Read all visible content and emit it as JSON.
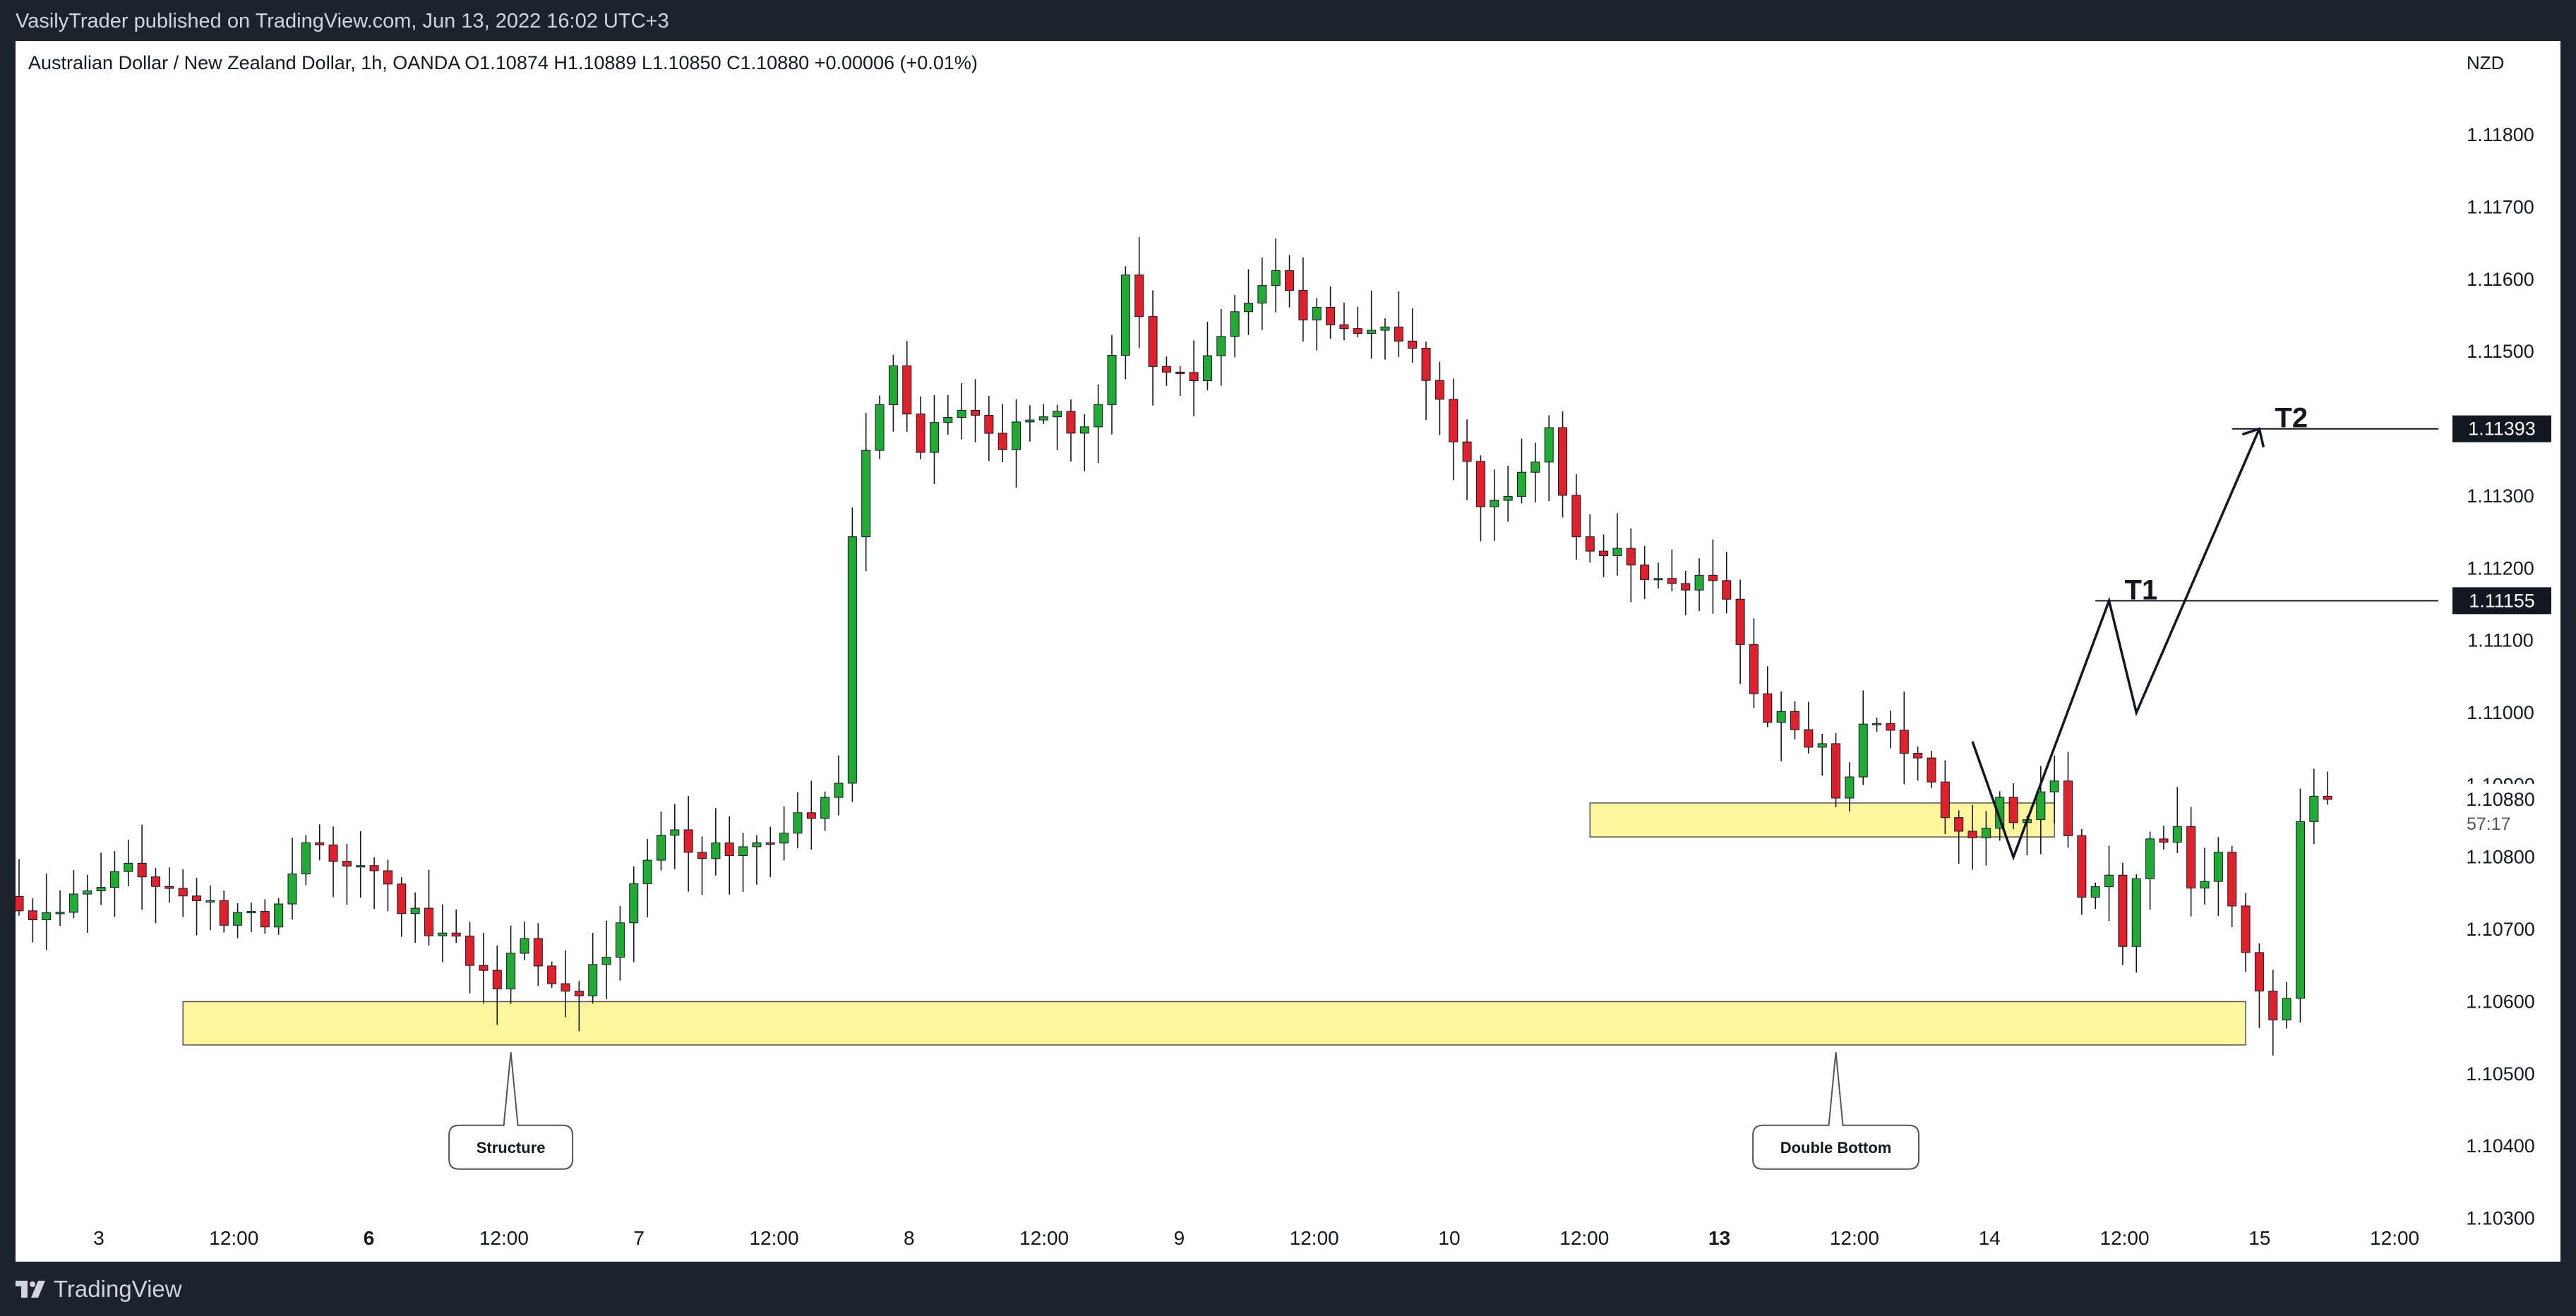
{
  "header": {
    "publisher": "VasilyTrader published on TradingView.com, Jun 13, 2022 16:02 UTC+3"
  },
  "footer": {
    "brand": "TradingView",
    "logo_icon": "tradingview-logo-icon"
  },
  "colors": {
    "background": "#ffffff",
    "frame": "#1e222d",
    "up": "#089981",
    "up_fill": "#22ab34",
    "down": "#e0202b",
    "zone": "#fff59d",
    "zone_border": "#555555",
    "text": "#131722"
  },
  "chart_data": {
    "type": "candlestick",
    "symbol_line": "Australian Dollar / New Zealand Dollar, 1h, OANDA  O1.10874  H1.10889  L1.10850  C1.10880  +0.00006 (+0.01%)",
    "currency": "NZD",
    "ylim": [
      1.1024,
      1.1193
    ],
    "y_ticks": [
      "1.11800",
      "1.11700",
      "1.11600",
      "1.11500",
      "1.11400",
      "1.11300",
      "1.11200",
      "1.11100",
      "1.11000",
      "1.10900",
      "1.10800",
      "1.10700",
      "1.10600",
      "1.10500",
      "1.10400",
      "1.10300"
    ],
    "x_ticks": [
      {
        "label": "3",
        "bold": false
      },
      {
        "label": "12:00",
        "bold": false
      },
      {
        "label": "6",
        "bold": true
      },
      {
        "label": "12:00",
        "bold": false
      },
      {
        "label": "7",
        "bold": false
      },
      {
        "label": "12:00",
        "bold": false
      },
      {
        "label": "8",
        "bold": false
      },
      {
        "label": "12:00",
        "bold": false
      },
      {
        "label": "9",
        "bold": false
      },
      {
        "label": "12:00",
        "bold": false
      },
      {
        "label": "10",
        "bold": false
      },
      {
        "label": "12:00",
        "bold": false
      },
      {
        "label": "13",
        "bold": true
      },
      {
        "label": "12:00",
        "bold": false
      },
      {
        "label": "14",
        "bold": false
      },
      {
        "label": "12:00",
        "bold": false
      },
      {
        "label": "15",
        "bold": false
      },
      {
        "label": "12:00",
        "bold": false
      }
    ],
    "price_labels": [
      {
        "text": "1.11393",
        "value": 1.11393,
        "style": "black"
      },
      {
        "text": "1.11155",
        "value": 1.11155,
        "style": "black"
      }
    ],
    "last_price": {
      "text": "1.10880",
      "countdown": "57:17",
      "value": 1.1088
    },
    "anchors": [
      {
        "label": "1.10900",
        "value": 1.109
      },
      {
        "label": "1.10880",
        "value": 1.1088
      }
    ],
    "key_points": [
      [
        0,
        1.1072
      ],
      [
        3,
        1.1073
      ],
      [
        6,
        1.1075
      ],
      [
        9,
        1.1079
      ],
      [
        12,
        1.1075
      ],
      [
        15,
        1.1071
      ],
      [
        18,
        1.1071
      ],
      [
        20,
        1.1078
      ],
      [
        22,
        1.1083
      ],
      [
        24,
        1.1078
      ],
      [
        26,
        1.1077
      ],
      [
        29,
        1.1072
      ],
      [
        32,
        1.1068
      ],
      [
        35,
        1.1063
      ],
      [
        37,
        1.1069
      ],
      [
        39,
        1.1064
      ],
      [
        41,
        1.1062
      ],
      [
        43,
        1.1067
      ],
      [
        45,
        1.1076
      ],
      [
        47,
        1.1084
      ],
      [
        50,
        1.1081
      ],
      [
        53,
        1.108
      ],
      [
        56,
        1.1084
      ],
      [
        58,
        1.1086
      ],
      [
        60,
        1.1089
      ],
      [
        61,
        1.1125
      ],
      [
        62,
        1.1138
      ],
      [
        64,
        1.1147
      ],
      [
        66,
        1.1137
      ],
      [
        69,
        1.1143
      ],
      [
        72,
        1.1138
      ],
      [
        75,
        1.1141
      ],
      [
        78,
        1.114
      ],
      [
        80,
        1.1148
      ],
      [
        81,
        1.1159
      ],
      [
        83,
        1.1149
      ],
      [
        86,
        1.1146
      ],
      [
        89,
        1.1154
      ],
      [
        92,
        1.116
      ],
      [
        94,
        1.1155
      ],
      [
        97,
        1.1154
      ],
      [
        101,
        1.1152
      ],
      [
        104,
        1.1143
      ],
      [
        107,
        1.113
      ],
      [
        110,
        1.1132
      ],
      [
        112,
        1.1138
      ],
      [
        114,
        1.1125
      ],
      [
        116,
        1.1121
      ],
      [
        118,
        1.1121
      ],
      [
        120,
        1.1118
      ],
      [
        124,
        1.1118
      ],
      [
        126,
        1.1111
      ],
      [
        127,
        1.1101
      ],
      [
        130,
        1.1098
      ],
      [
        132,
        1.1095
      ],
      [
        133,
        1.1088
      ],
      [
        135,
        1.1097
      ],
      [
        137,
        1.1098
      ],
      [
        140,
        1.109
      ],
      [
        142,
        1.1083
      ],
      [
        145,
        1.1087
      ],
      [
        147,
        1.1086
      ],
      [
        149,
        1.1089
      ],
      [
        150,
        1.1082
      ],
      [
        151,
        1.1075
      ],
      [
        153,
        1.1077
      ],
      [
        154,
        1.1069
      ],
      [
        156,
        1.1082
      ],
      [
        158,
        1.1083
      ],
      [
        159,
        1.1076
      ],
      [
        161,
        1.1079
      ],
      [
        163,
        1.1068
      ],
      [
        164,
        1.1063
      ],
      [
        165,
        1.1058
      ],
      [
        166,
        1.106
      ],
      [
        167,
        1.1085
      ],
      [
        168,
        1.1087
      ],
      [
        169,
        1.1088
      ]
    ],
    "zones": [
      {
        "t0": 12,
        "t1": 163,
        "top": 1.106,
        "bottom": 1.1054
      },
      {
        "t0": 115,
        "t1": 149,
        "top": 1.10875,
        "bottom": 1.10828
      }
    ],
    "horizontal_lines": [
      {
        "value": 1.11393,
        "t0": 162,
        "t1": 204
      },
      {
        "value": 1.11155,
        "t0": 152,
        "t1": 204
      }
    ],
    "projection_path": [
      [
        143,
        1.1096
      ],
      [
        146,
        1.108
      ],
      [
        153,
        1.11155
      ],
      [
        155,
        1.11
      ],
      [
        164,
        1.11393
      ]
    ],
    "targets": [
      {
        "label": "T1",
        "t": 153,
        "value": 1.11155
      },
      {
        "label": "T2",
        "t": 164,
        "value": 1.11393
      }
    ],
    "callouts": [
      {
        "text": "Structure",
        "t": 36,
        "value": 1.1046
      },
      {
        "text": "Double Bottom",
        "t": 133,
        "value": 1.1046
      }
    ]
  }
}
